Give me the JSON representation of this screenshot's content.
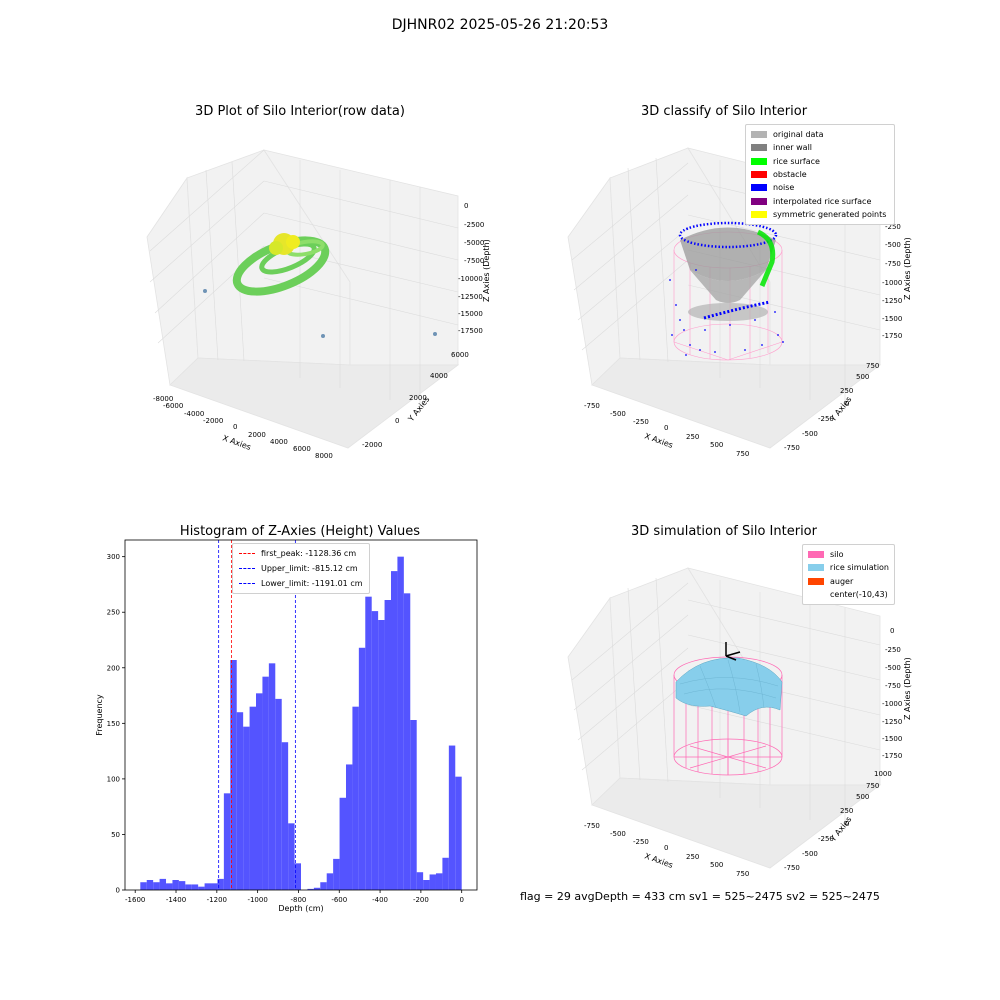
{
  "suptitle": "DJHNR02 2025-05-26 21:20:53",
  "plots": {
    "raw": {
      "title": "3D Plot of Silo Interior(row data)",
      "xlabel": "X Axies",
      "ylabel": "Y Axies",
      "zlabel": "Z Axies (Depth)",
      "xticks": [
        "-8000",
        "-6000",
        "-4000",
        "-2000",
        "0",
        "2000",
        "4000",
        "6000",
        "8000"
      ],
      "yticks": [
        "-2000",
        "0",
        "2000",
        "4000",
        "6000"
      ],
      "zticks": [
        "0",
        "-2500",
        "-5000",
        "-7500",
        "-10000",
        "-12500",
        "-15000",
        "-17500"
      ]
    },
    "classify": {
      "title": "3D classify of Silo Interior",
      "xlabel": "X Axies",
      "ylabel": "Y Axies",
      "zlabel": "Z Axies (Depth)",
      "xticks": [
        "-750",
        "-500",
        "-250",
        "0",
        "250",
        "500",
        "750"
      ],
      "yticks": [
        "-750",
        "-500",
        "-250",
        "0",
        "250",
        "500",
        "750"
      ],
      "zticks": [
        "0",
        "-250",
        "-500",
        "-750",
        "-1000",
        "-1250",
        "-1500",
        "-1750"
      ],
      "legend": [
        {
          "label": "original data",
          "color": "#b3b3b3"
        },
        {
          "label": "inner wall",
          "color": "#808080"
        },
        {
          "label": "rice surface",
          "color": "#00ff00"
        },
        {
          "label": "obstacle",
          "color": "#ff0000"
        },
        {
          "label": "noise",
          "color": "#0000ff"
        },
        {
          "label": "interpolated rice surface",
          "color": "#800080"
        },
        {
          "label": "symmetric generated points",
          "color": "#ffff00"
        }
      ]
    },
    "simulation": {
      "title": "3D simulation of Silo Interior",
      "xlabel": "X Axies",
      "ylabel": "Y Axies",
      "zlabel": "Z Axies (Depth)",
      "xticks": [
        "-750",
        "-500",
        "-250",
        "0",
        "250",
        "500",
        "750"
      ],
      "yticks": [
        "-750",
        "-500",
        "-250",
        "0",
        "250",
        "500",
        "750",
        "1000"
      ],
      "zticks": [
        "0",
        "-250",
        "-500",
        "-750",
        "-1000",
        "-1250",
        "-1500",
        "-1750"
      ],
      "legend": [
        {
          "label": "silo",
          "color": "#ff69b4"
        },
        {
          "label": "rice simulation",
          "color": "#87ceeb"
        },
        {
          "label": "auger",
          "color": "#ff4500"
        },
        {
          "label": "center(-10,43)",
          "color": "#ffffff"
        }
      ]
    }
  },
  "chart_data": {
    "type": "bar",
    "title": "Histogram of Z-Axies (Height) Values",
    "xlabel": "Depth (cm)",
    "ylabel": "Frequency",
    "xlim": [
      -1650,
      75
    ],
    "ylim": [
      0,
      315
    ],
    "xticks": [
      -1600,
      -1400,
      -1200,
      -1000,
      -800,
      -600,
      -400,
      -200,
      0
    ],
    "yticks": [
      0,
      50,
      100,
      150,
      200,
      250,
      300
    ],
    "color": "#4b4bff",
    "bin_start": -1575,
    "bin_width": 31.5,
    "values": [
      7,
      9,
      7,
      10,
      6,
      9,
      8,
      5,
      5,
      3,
      6,
      6,
      10,
      87,
      207,
      160,
      147,
      165,
      177,
      192,
      204,
      172,
      133,
      60,
      24,
      0,
      1,
      2,
      7,
      15,
      28,
      83,
      113,
      165,
      218,
      264,
      251,
      243,
      261,
      287,
      300,
      267,
      153,
      16,
      9,
      14,
      15,
      29,
      130,
      102
    ],
    "lines": [
      {
        "label": "first_peak: -1128.36 cm",
        "value": -1128.36,
        "color": "#ff0000"
      },
      {
        "label": "Upper_limit: -815.12 cm",
        "value": -815.12,
        "color": "#0000ff"
      },
      {
        "label": "Lower_limit: -1191.01 cm",
        "value": -1191.01,
        "color": "#0000ff"
      }
    ]
  },
  "footer": "flag = 29  avgDepth = 433 cm  sv1 = 525~2475  sv2 = 525~2475"
}
